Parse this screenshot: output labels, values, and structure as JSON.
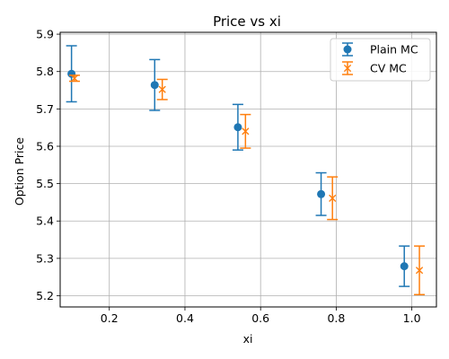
{
  "chart_data": {
    "type": "scatter",
    "title": "Price vs xi",
    "xlabel": "xi",
    "ylabel": "Option Price",
    "xlim": [
      0.07,
      1.065
    ],
    "ylim": [
      5.17,
      5.905
    ],
    "xticks": [
      0.2,
      0.4,
      0.6,
      0.8,
      1.0
    ],
    "xtick_labels": [
      "0.2",
      "0.4",
      "0.6",
      "0.8",
      "1.0"
    ],
    "yticks": [
      5.2,
      5.3,
      5.4,
      5.5,
      5.6,
      5.7,
      5.8,
      5.9
    ],
    "ytick_labels": [
      "5.2",
      "5.3",
      "5.4",
      "5.5",
      "5.6",
      "5.7",
      "5.8",
      "5.9"
    ],
    "grid": true,
    "legend_position": "top-right",
    "series": [
      {
        "name": "Plain MC",
        "marker": "circle",
        "color": "#1f77b4",
        "x": [
          0.1,
          0.32,
          0.54,
          0.76,
          0.98
        ],
        "y": [
          5.794,
          5.764,
          5.651,
          5.472,
          5.279
        ],
        "err": [
          0.075,
          0.068,
          0.061,
          0.057,
          0.054
        ]
      },
      {
        "name": "CV MC",
        "marker": "x",
        "color": "#ff7f0e",
        "x": [
          0.108,
          0.34,
          0.56,
          0.79,
          1.02
        ],
        "y": [
          5.782,
          5.752,
          5.64,
          5.461,
          5.268
        ],
        "err": [
          0.008,
          0.027,
          0.045,
          0.057,
          0.065
        ]
      }
    ]
  }
}
